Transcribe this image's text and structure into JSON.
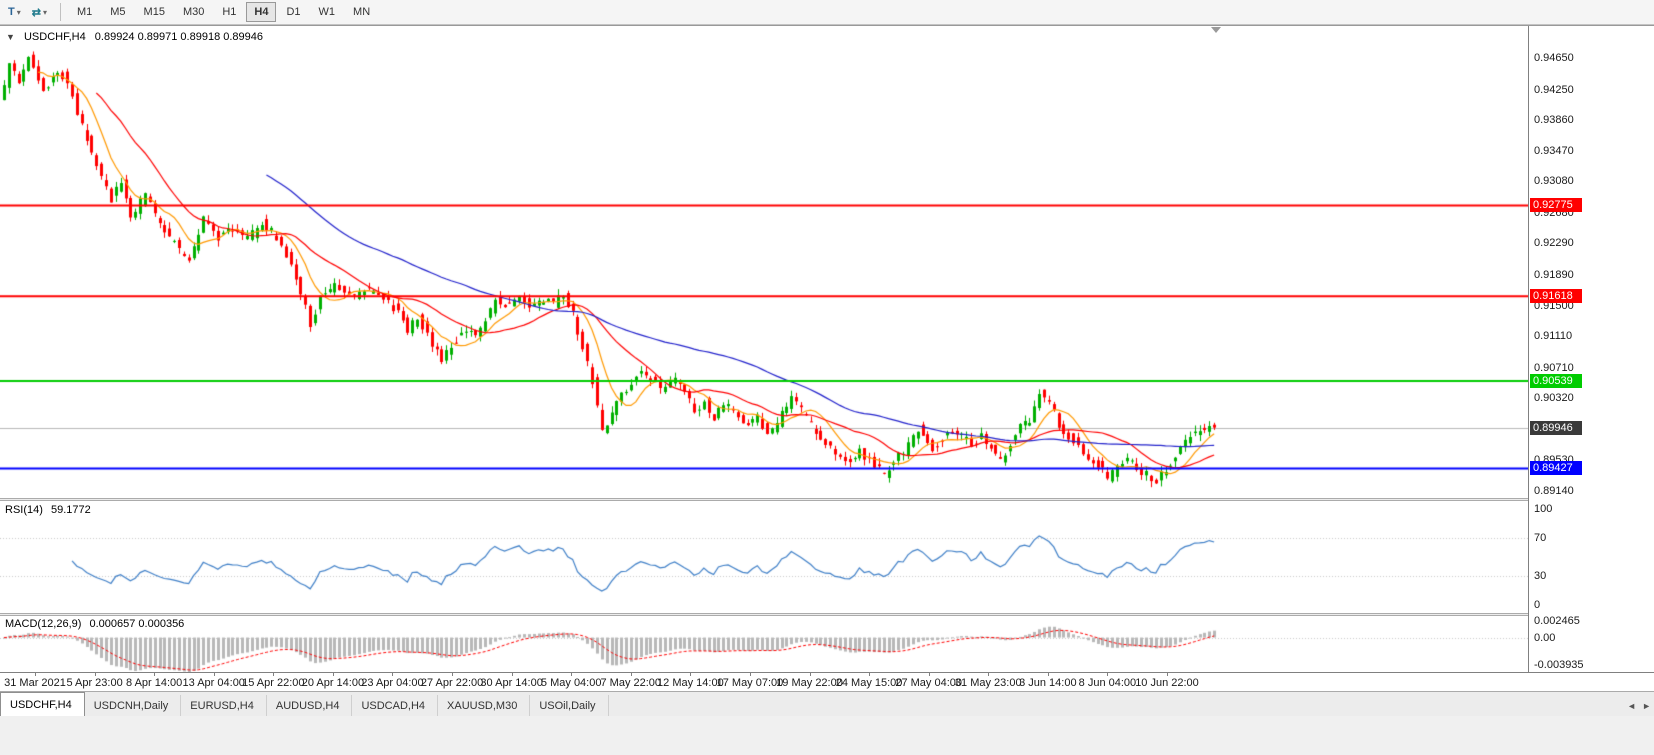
{
  "icons": {
    "collapse": "▼",
    "dropdown": "▾",
    "tool": "T",
    "symbols": "⇄",
    "tab_prev": "◄",
    "tab_next": "►"
  },
  "toolbar": {
    "timeframes": [
      "M1",
      "M5",
      "M15",
      "M30",
      "H1",
      "H4",
      "D1",
      "W1",
      "MN"
    ],
    "active_timeframe": "H4"
  },
  "chart": {
    "title_symbol": "USDCHF,H4",
    "ohlc_text": "0.89924 0.89971 0.89918 0.89946"
  },
  "rsi_panel": {
    "label": "RSI(14)",
    "value": "59.1772",
    "ticks": [
      "100",
      "70",
      "30",
      "0"
    ]
  },
  "macd_panel": {
    "label": "MACD(12,26,9)",
    "values": "0.000657 0.000356",
    "ticks": [
      "0.002465",
      "0.00",
      "-0.003935"
    ]
  },
  "tabs": {
    "items": [
      "USDCHF,H4",
      "USDCNH,Daily",
      "EURUSD,H4",
      "AUDUSD,H4",
      "USDCAD,H4",
      "XAUUSD,M30",
      "USOil,Daily"
    ],
    "active": "USDCHF,H4"
  },
  "chart_data": {
    "type": "candlestick",
    "symbol": "USDCHF",
    "timeframe": "H4",
    "current": {
      "open": 0.89924,
      "high": 0.89971,
      "low": 0.89918,
      "close": 0.89946
    },
    "price_range": {
      "top": 0.95046,
      "bottom": 0.8905
    },
    "y_ticks": [
      "0.94650",
      "0.94250",
      "0.93860",
      "0.93470",
      "0.93080",
      "0.92680",
      "0.92290",
      "0.91890",
      "0.91500",
      "0.91110",
      "0.90710",
      "0.90320",
      "0.89930",
      "0.89530",
      "0.89140"
    ],
    "x_labels": [
      "31 Mar 2021",
      "5 Apr 23:00",
      "8 Apr 14:00",
      "13 Apr 04:00",
      "15 Apr 22:00",
      "20 Apr 14:00",
      "23 Apr 04:00",
      "27 Apr 22:00",
      "30 Apr 14:00",
      "5 May 04:00",
      "7 May 22:00",
      "12 May 14:00",
      "17 May 07:00",
      "19 May 22:00",
      "24 May 15:00",
      "27 May 04:00",
      "31 May 23:00",
      "3 Jun 14:00",
      "8 Jun 04:00",
      "10 Jun 22:00"
    ],
    "hlines": [
      {
        "price": 0.92775,
        "label": "0.92775",
        "color": "#ff0000"
      },
      {
        "price": 0.91618,
        "label": "0.91618",
        "color": "#ff0000"
      },
      {
        "price": 0.90539,
        "label": "0.90539",
        "color": "#00cc00"
      },
      {
        "price": 0.89427,
        "label": "0.89427",
        "color": "#0000ff"
      }
    ],
    "current_price": {
      "price": 0.89946,
      "label": "0.89946",
      "bg": "#3a3a3a"
    },
    "candles": {
      "count": 250,
      "up_color": "#00b000",
      "down_color": "#ff0000",
      "body_noise": 0.0011,
      "wick_noise": 0.0008,
      "anchors": [
        [
          0,
          0.9408
        ],
        [
          2,
          0.9455
        ],
        [
          4,
          0.9432
        ],
        [
          6,
          0.9464
        ],
        [
          9,
          0.9422
        ],
        [
          12,
          0.945
        ],
        [
          14,
          0.9436
        ],
        [
          17,
          0.9378
        ],
        [
          20,
          0.9328
        ],
        [
          23,
          0.9286
        ],
        [
          25,
          0.931
        ],
        [
          27,
          0.9262
        ],
        [
          30,
          0.9291
        ],
        [
          33,
          0.9254
        ],
        [
          36,
          0.9228
        ],
        [
          39,
          0.9206
        ],
        [
          42,
          0.926
        ],
        [
          45,
          0.9238
        ],
        [
          48,
          0.925
        ],
        [
          51,
          0.9234
        ],
        [
          54,
          0.9255
        ],
        [
          57,
          0.9238
        ],
        [
          60,
          0.9202
        ],
        [
          62,
          0.9166
        ],
        [
          64,
          0.9126
        ],
        [
          66,
          0.916
        ],
        [
          69,
          0.9176
        ],
        [
          72,
          0.916
        ],
        [
          75,
          0.9171
        ],
        [
          78,
          0.9161
        ],
        [
          81,
          0.9148
        ],
        [
          84,
          0.912
        ],
        [
          86,
          0.9136
        ],
        [
          89,
          0.9103
        ],
        [
          91,
          0.908
        ],
        [
          93,
          0.91
        ],
        [
          96,
          0.9121
        ],
        [
          98,
          0.911
        ],
        [
          100,
          0.913
        ],
        [
          102,
          0.9158
        ],
        [
          105,
          0.915
        ],
        [
          107,
          0.9164
        ],
        [
          109,
          0.9149
        ],
        [
          112,
          0.9159
        ],
        [
          114,
          0.9151
        ],
        [
          116,
          0.9166
        ],
        [
          118,
          0.9138
        ],
        [
          120,
          0.9098
        ],
        [
          122,
          0.9055
        ],
        [
          124,
          0.8989
        ],
        [
          126,
          0.9012
        ],
        [
          128,
          0.9035
        ],
        [
          130,
          0.905
        ],
        [
          132,
          0.9066
        ],
        [
          134,
          0.9056
        ],
        [
          136,
          0.9042
        ],
        [
          139,
          0.906
        ],
        [
          141,
          0.9038
        ],
        [
          143,
          0.9016
        ],
        [
          145,
          0.9028
        ],
        [
          147,
          0.9006
        ],
        [
          149,
          0.9024
        ],
        [
          152,
          0.9012
        ],
        [
          154,
          0.8999
        ],
        [
          156,
          0.9008
        ],
        [
          158,
          0.8988
        ],
        [
          160,
          0.9
        ],
        [
          163,
          0.9032
        ],
        [
          165,
          0.9016
        ],
        [
          168,
          0.8988
        ],
        [
          171,
          0.8968
        ],
        [
          174,
          0.8952
        ],
        [
          177,
          0.8964
        ],
        [
          180,
          0.8948
        ],
        [
          182,
          0.8936
        ],
        [
          184,
          0.8954
        ],
        [
          186,
          0.896
        ],
        [
          189,
          0.8994
        ],
        [
          192,
          0.897
        ],
        [
          194,
          0.898
        ],
        [
          196,
          0.899
        ],
        [
          198,
          0.8984
        ],
        [
          200,
          0.8974
        ],
        [
          202,
          0.8984
        ],
        [
          204,
          0.8968
        ],
        [
          206,
          0.895
        ],
        [
          208,
          0.8974
        ],
        [
          210,
          0.8994
        ],
        [
          212,
          0.9006
        ],
        [
          214,
          0.904
        ],
        [
          216,
          0.9028
        ],
        [
          218,
          0.8998
        ],
        [
          220,
          0.8984
        ],
        [
          222,
          0.8972
        ],
        [
          224,
          0.8958
        ],
        [
          226,
          0.8948
        ],
        [
          228,
          0.893
        ],
        [
          230,
          0.8942
        ],
        [
          232,
          0.8954
        ],
        [
          234,
          0.8944
        ],
        [
          236,
          0.8934
        ],
        [
          238,
          0.8926
        ],
        [
          240,
          0.8942
        ],
        [
          242,
          0.896
        ],
        [
          244,
          0.8978
        ],
        [
          246,
          0.8988
        ],
        [
          248,
          0.8994
        ],
        [
          250,
          0.8995
        ]
      ]
    },
    "moving_averages": [
      {
        "period": 8,
        "color": "#ff9900"
      },
      {
        "period": 20,
        "color": "#ff0000"
      },
      {
        "period": 55,
        "color": "#2222cc"
      }
    ],
    "rsi": {
      "period": 14,
      "color": "#4080c8",
      "levels": [
        70,
        30
      ],
      "axis": [
        100,
        70,
        30,
        0
      ]
    },
    "macd": {
      "fast": 12,
      "slow": 26,
      "signal": 9,
      "hist_color": "#b8b8b8",
      "signal_color": "#ff0000",
      "range": {
        "top": 0.002465,
        "bottom": -0.003935
      }
    }
  }
}
